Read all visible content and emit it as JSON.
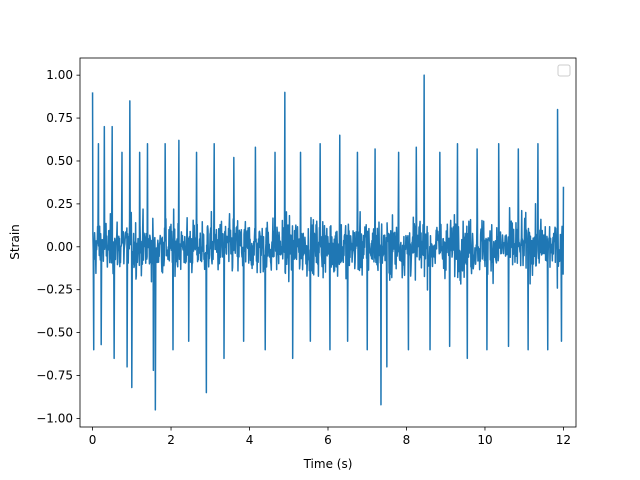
{
  "chart_data": {
    "type": "line",
    "title": "",
    "xlabel": "Time (s)",
    "ylabel": "Strain",
    "xlim": [
      -0.32,
      12.32
    ],
    "ylim": [
      -1.05,
      1.1
    ],
    "x_ticks": [
      0,
      2,
      4,
      6,
      8,
      10,
      12
    ],
    "x_tick_labels": [
      "0",
      "2",
      "4",
      "6",
      "8",
      "10",
      "12"
    ],
    "y_ticks": [
      -1.0,
      -0.75,
      -0.5,
      -0.25,
      0.0,
      0.25,
      0.5,
      0.75,
      1.0
    ],
    "y_tick_labels": [
      "−1.00",
      "−0.75",
      "−0.50",
      "−0.25",
      "0.00",
      "0.25",
      "0.50",
      "0.75",
      "1.00"
    ],
    "grid": false,
    "legend": {
      "placement": "top-right",
      "entries": []
    },
    "series": [
      {
        "color": "#1f77b4",
        "x_range": [
          0,
          12
        ],
        "envelope": {
          "typical_max": 0.45,
          "typical_min": -0.45
        },
        "points": [
          {
            "x": 0.0,
            "y": 0.9
          },
          {
            "x": 0.03,
            "y": -0.6
          },
          {
            "x": 0.15,
            "y": 0.6
          },
          {
            "x": 0.22,
            "y": -0.57
          },
          {
            "x": 0.3,
            "y": 0.7
          },
          {
            "x": 0.5,
            "y": 0.7
          },
          {
            "x": 0.55,
            "y": -0.65
          },
          {
            "x": 0.75,
            "y": 0.55
          },
          {
            "x": 0.88,
            "y": -0.7
          },
          {
            "x": 0.95,
            "y": 0.85
          },
          {
            "x": 1.0,
            "y": -0.82
          },
          {
            "x": 1.2,
            "y": 0.55
          },
          {
            "x": 1.4,
            "y": 0.6
          },
          {
            "x": 1.55,
            "y": -0.72
          },
          {
            "x": 1.6,
            "y": -0.95
          },
          {
            "x": 1.85,
            "y": 0.6
          },
          {
            "x": 2.05,
            "y": -0.6
          },
          {
            "x": 2.2,
            "y": 0.62
          },
          {
            "x": 2.45,
            "y": -0.55
          },
          {
            "x": 2.65,
            "y": 0.55
          },
          {
            "x": 2.9,
            "y": -0.85
          },
          {
            "x": 3.1,
            "y": 0.6
          },
          {
            "x": 3.35,
            "y": -0.65
          },
          {
            "x": 3.6,
            "y": 0.52
          },
          {
            "x": 3.85,
            "y": -0.55
          },
          {
            "x": 4.15,
            "y": 0.58
          },
          {
            "x": 4.4,
            "y": -0.6
          },
          {
            "x": 4.65,
            "y": 0.55
          },
          {
            "x": 4.9,
            "y": 0.9
          },
          {
            "x": 5.1,
            "y": -0.65
          },
          {
            "x": 5.3,
            "y": 0.55
          },
          {
            "x": 5.55,
            "y": -0.55
          },
          {
            "x": 5.8,
            "y": 0.6
          },
          {
            "x": 6.05,
            "y": -0.6
          },
          {
            "x": 6.3,
            "y": 0.65
          },
          {
            "x": 6.5,
            "y": -0.55
          },
          {
            "x": 6.75,
            "y": 0.55
          },
          {
            "x": 7.0,
            "y": -0.6
          },
          {
            "x": 7.2,
            "y": 0.57
          },
          {
            "x": 7.35,
            "y": -0.92
          },
          {
            "x": 7.5,
            "y": -0.7
          },
          {
            "x": 7.8,
            "y": 0.55
          },
          {
            "x": 8.05,
            "y": -0.6
          },
          {
            "x": 8.25,
            "y": 0.58
          },
          {
            "x": 8.45,
            "y": 1.0
          },
          {
            "x": 8.6,
            "y": -0.6
          },
          {
            "x": 8.85,
            "y": 0.55
          },
          {
            "x": 9.1,
            "y": -0.58
          },
          {
            "x": 9.3,
            "y": 0.6
          },
          {
            "x": 9.55,
            "y": -0.65
          },
          {
            "x": 9.8,
            "y": 0.57
          },
          {
            "x": 10.05,
            "y": -0.6
          },
          {
            "x": 10.35,
            "y": 0.6
          },
          {
            "x": 10.6,
            "y": -0.58
          },
          {
            "x": 10.85,
            "y": 0.57
          },
          {
            "x": 11.1,
            "y": -0.6
          },
          {
            "x": 11.35,
            "y": 0.6
          },
          {
            "x": 11.6,
            "y": -0.6
          },
          {
            "x": 11.85,
            "y": 0.8
          },
          {
            "x": 11.95,
            "y": -0.55
          },
          {
            "x": 12.0,
            "y": 0.35
          }
        ]
      }
    ]
  }
}
